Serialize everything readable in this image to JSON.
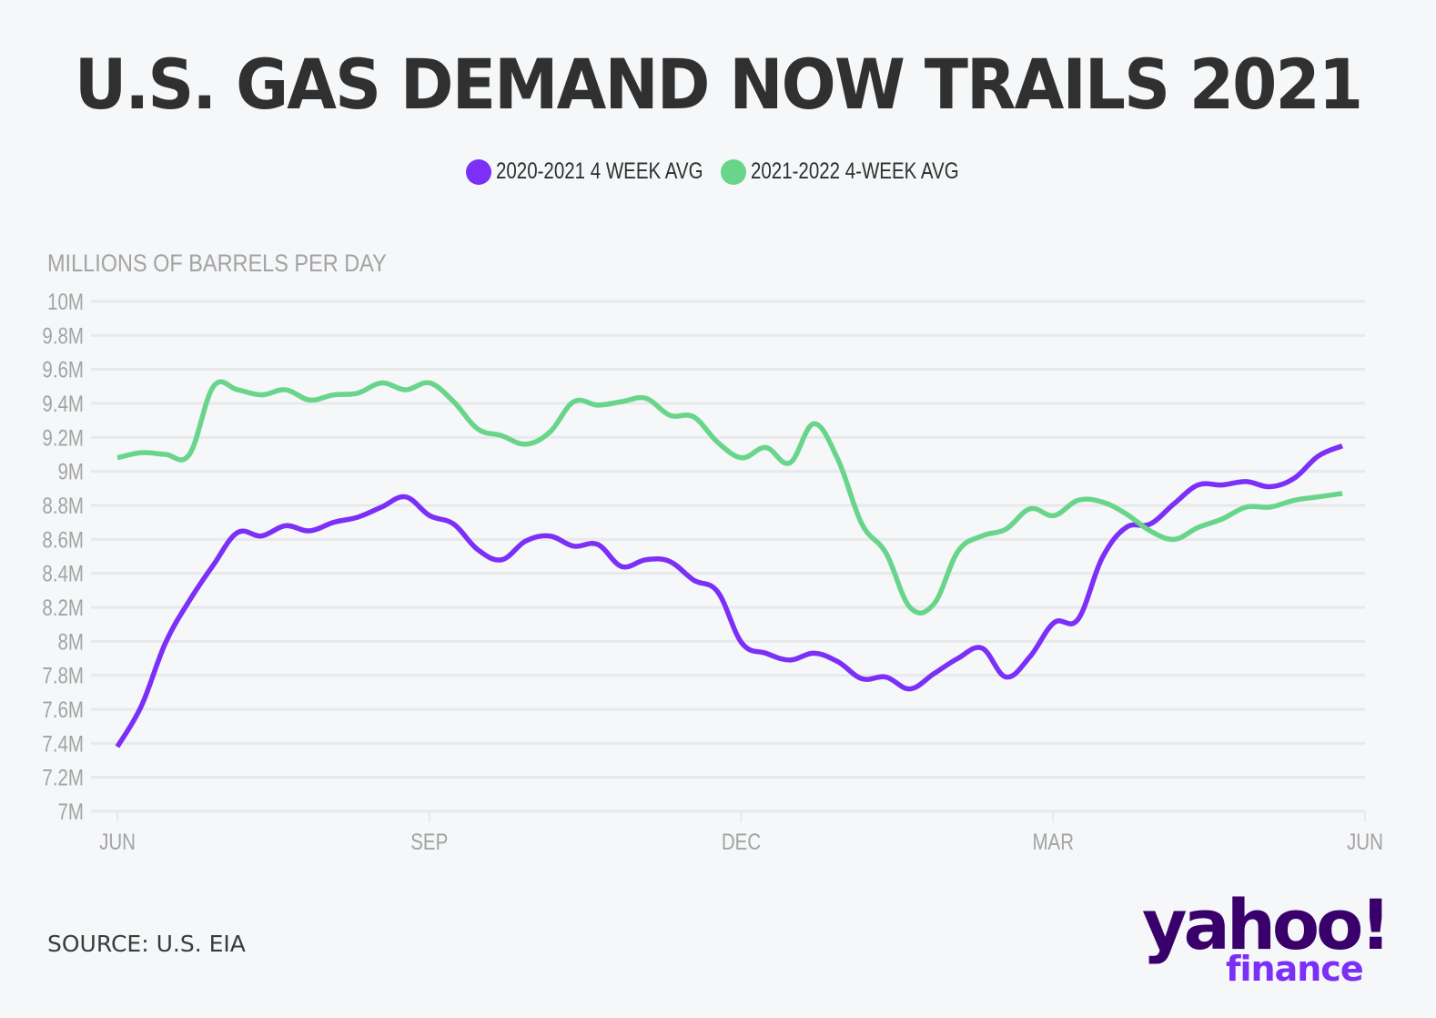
{
  "header": {
    "title": "U.S. GAS DEMAND NOW TRAILS 2021"
  },
  "footer": {
    "source": "SOURCE: U.S. EIA",
    "logo_primary": "yahoo!",
    "logo_secondary": "finance"
  },
  "colors": {
    "series_2020_2021": "#7b2ff7",
    "series_2021_2022": "#68d58a",
    "grid": "#e8e9eb",
    "tick_label": "#a3a3a3",
    "title": "#303030",
    "logo_dark": "#39006b",
    "logo_light": "#7b2ff7"
  },
  "chart_data": {
    "type": "line",
    "title": "U.S. GAS DEMAND NOW TRAILS 2021",
    "ylabel": "MILLIONS OF BARRELS PER DAY",
    "xlabel": "",
    "ylim": [
      7,
      10
    ],
    "yticks": [
      7,
      7.2,
      7.4,
      7.6,
      7.8,
      8,
      8.2,
      8.4,
      8.6,
      8.8,
      9,
      9.2,
      9.4,
      9.6,
      9.8,
      10
    ],
    "ytick_labels": [
      "7M",
      "7.2M",
      "7.4M",
      "7.6M",
      "7.8M",
      "8M",
      "8.2M",
      "8.4M",
      "8.6M",
      "8.8M",
      "9M",
      "9.2M",
      "9.4M",
      "9.6M",
      "9.8M",
      "10M"
    ],
    "x_unit": "week",
    "xlim": [
      0,
      52
    ],
    "xticks": [
      0,
      13,
      26,
      39,
      52
    ],
    "xtick_labels": [
      "JUN",
      "SEP",
      "DEC",
      "MAR",
      "JUN"
    ],
    "grid": true,
    "legend_position": "top-center",
    "x": [
      0,
      1,
      2,
      3,
      4,
      5,
      6,
      7,
      8,
      9,
      10,
      11,
      12,
      13,
      14,
      15,
      16,
      17,
      18,
      19,
      20,
      21,
      22,
      23,
      24,
      25,
      26,
      27,
      28,
      29,
      30,
      31,
      32,
      33,
      34,
      35,
      36,
      37,
      38,
      39,
      40,
      41,
      42,
      43,
      44,
      45,
      46,
      47,
      48,
      49,
      50,
      51
    ],
    "series": [
      {
        "name": "2020-2021 4 WEEK AVG",
        "color": "#7b2ff7",
        "values": [
          7.38,
          7.62,
          7.99,
          8.24,
          8.45,
          8.64,
          8.62,
          8.68,
          8.65,
          8.7,
          8.73,
          8.79,
          8.85,
          8.74,
          8.69,
          8.54,
          8.48,
          8.59,
          8.62,
          8.56,
          8.57,
          8.44,
          8.48,
          8.47,
          8.36,
          8.29,
          7.99,
          7.93,
          7.89,
          7.93,
          7.88,
          7.78,
          7.79,
          7.72,
          7.81,
          7.9,
          7.96,
          7.79,
          7.91,
          8.11,
          8.13,
          8.49,
          8.67,
          8.69,
          8.81,
          8.92,
          8.92,
          8.94,
          8.91,
          8.96,
          9.09,
          9.15
        ]
      },
      {
        "name": "2021-2022 4-WEEK AVG",
        "color": "#68d58a",
        "values": [
          9.08,
          9.11,
          9.1,
          9.1,
          9.5,
          9.48,
          9.45,
          9.48,
          9.42,
          9.45,
          9.46,
          9.52,
          9.48,
          9.52,
          9.41,
          9.25,
          9.21,
          9.16,
          9.23,
          9.41,
          9.39,
          9.41,
          9.43,
          9.33,
          9.32,
          9.17,
          9.08,
          9.14,
          9.05,
          9.28,
          9.07,
          8.69,
          8.52,
          8.2,
          8.22,
          8.53,
          8.62,
          8.66,
          8.78,
          8.74,
          8.83,
          8.82,
          8.75,
          8.65,
          8.6,
          8.67,
          8.72,
          8.79,
          8.79,
          8.83,
          8.85,
          8.87
        ]
      }
    ]
  }
}
